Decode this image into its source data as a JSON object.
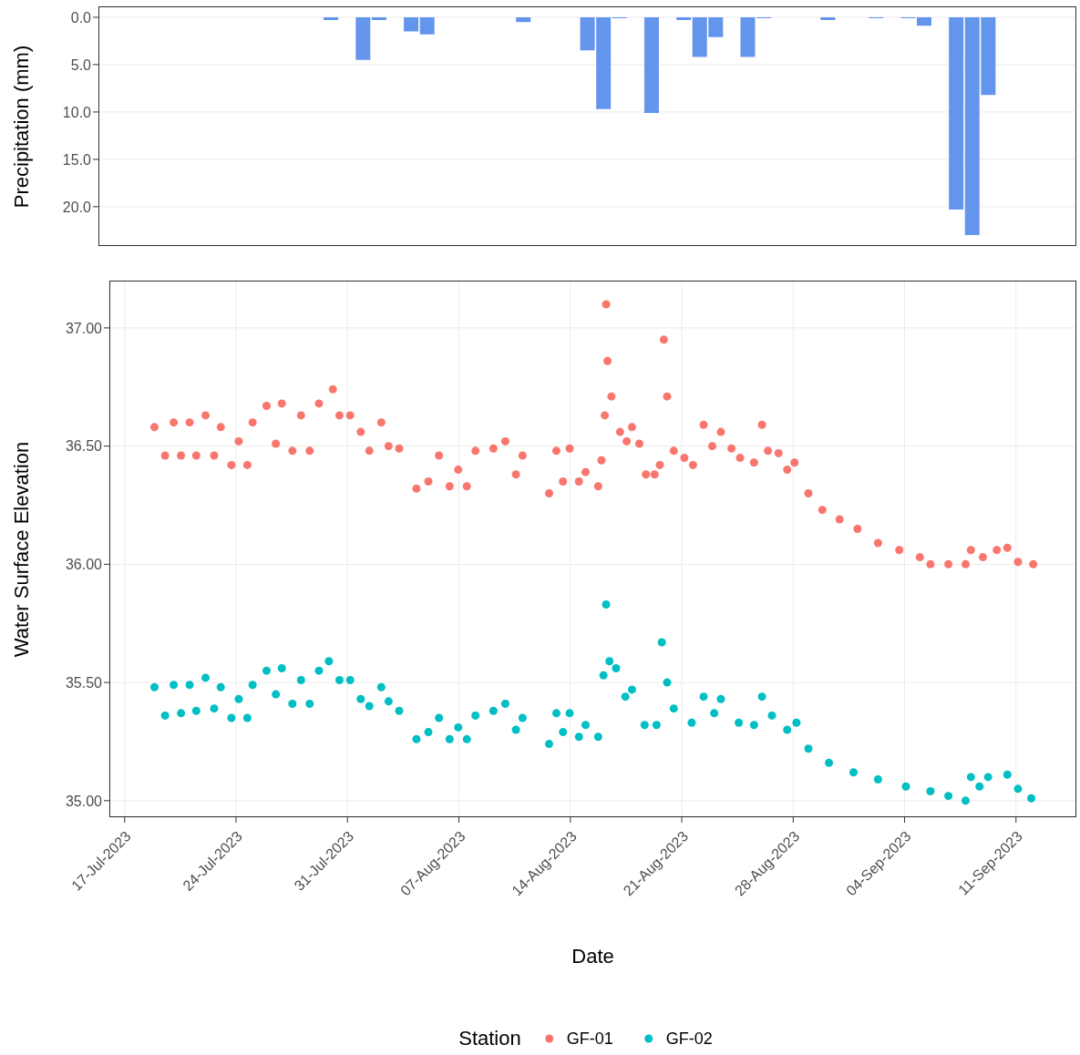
{
  "chart_data": [
    {
      "type": "bar",
      "ylabel": "Precipitation (mm)",
      "tick_labels": "y",
      "grid": "y",
      "categories": [
        null,
        null,
        null,
        null,
        null,
        null,
        null,
        null,
        null,
        null,
        null,
        null,
        null,
        null,
        null,
        null,
        null,
        null,
        null,
        null,
        null,
        null,
        null,
        null,
        null,
        null,
        null,
        null,
        null,
        null,
        null,
        null,
        null,
        null,
        null,
        null,
        null,
        null,
        null,
        null,
        null,
        null,
        null,
        null,
        null,
        null,
        null,
        null,
        null,
        null,
        null,
        null,
        null,
        null,
        null,
        null,
        null,
        null,
        null,
        null,
        null
      ],
      "values": [
        0,
        0,
        0,
        0,
        0,
        0,
        0,
        0,
        0,
        0,
        0,
        0,
        0,
        0,
        0.3,
        0,
        4.5,
        0.3,
        0,
        1.5,
        1.8,
        0,
        0,
        0,
        0,
        0,
        0.5,
        0,
        0,
        0,
        3.5,
        9.7,
        0.1,
        0,
        10.1,
        0,
        0.3,
        4.2,
        2.1,
        0,
        4.2,
        0.1,
        0,
        0,
        0,
        0.3,
        0,
        0,
        0.1,
        0,
        0.1,
        0.9,
        0,
        20.3,
        23.0,
        8.2,
        0,
        0,
        0,
        0,
        0
      ],
      "color": "#6495ed",
      "ylim": [
        24.15,
        -1.15
      ],
      "yticks": [
        {
          "value": 0,
          "label": "0.0"
        },
        {
          "value": 5,
          "label": "5.0"
        },
        {
          "value": 10,
          "label": "10.0"
        },
        {
          "value": 15,
          "label": "15.0"
        },
        {
          "value": 20,
          "label": "20.0"
        }
      ]
    },
    {
      "type": "scatter",
      "xlabel": "Date",
      "ylabel": "Water Surface Elevation",
      "legend_title": "Station",
      "legend": "bottom",
      "grid": true,
      "marker": "circle",
      "xlim": [
        "2023-07-16T01:00",
        "2023-09-14T19:00"
      ],
      "xticks": [
        {
          "value": "2023-07-17",
          "label": "17-Jul-2023"
        },
        {
          "value": "2023-07-24",
          "label": "24-Jul-2023"
        },
        {
          "value": "2023-07-31",
          "label": "31-Jul-2023"
        },
        {
          "value": "2023-08-07",
          "label": "07-Aug-2023"
        },
        {
          "value": "2023-08-14",
          "label": "14-Aug-2023"
        },
        {
          "value": "2023-08-21",
          "label": "21-Aug-2023"
        },
        {
          "value": "2023-08-28",
          "label": "28-Aug-2023"
        },
        {
          "value": "2023-09-04",
          "label": "04-Sep-2023"
        },
        {
          "value": "2023-09-11",
          "label": "11-Sep-2023"
        }
      ],
      "ylim": [
        34.93,
        37.2
      ],
      "yticks": [
        {
          "value": 35,
          "label": "35.00"
        },
        {
          "value": 35.5,
          "label": "35.50"
        },
        {
          "value": 36,
          "label": "36.00"
        },
        {
          "value": 36.5,
          "label": "36.50"
        },
        {
          "value": 37,
          "label": "37.00"
        }
      ],
      "series": [
        {
          "name": "GF-01",
          "color": "#f8766d",
          "x": [
            "2023-07-18T21:00",
            "2023-07-19T13:00",
            "2023-07-20T02:00",
            "2023-07-20T13:00",
            "2023-07-21T02:00",
            "2023-07-21T12:00",
            "2023-07-22T02:00",
            "2023-07-22T15:00",
            "2023-07-23T01:00",
            "2023-07-23T17:00",
            "2023-07-24T04:00",
            "2023-07-24T17:00",
            "2023-07-25T01:00",
            "2023-07-25T22:00",
            "2023-07-26T12:00",
            "2023-07-26T21:00",
            "2023-07-27T13:00",
            "2023-07-28T02:00",
            "2023-07-28T15:00",
            "2023-07-29T05:00",
            "2023-07-30T02:00",
            "2023-07-30T12:00",
            "2023-07-31T04:00",
            "2023-07-31T20:00",
            "2023-08-01T09:00",
            "2023-08-02T03:00",
            "2023-08-02T14:00",
            "2023-08-03T06:00",
            "2023-08-04T08:00",
            "2023-08-05T02:00",
            "2023-08-05T18:00",
            "2023-08-06T10:00",
            "2023-08-06T23:00",
            "2023-08-07T12:00",
            "2023-08-08T01:00",
            "2023-08-09T04:00",
            "2023-08-09T22:00",
            "2023-08-10T14:00",
            "2023-08-11T00:00",
            "2023-08-12T16:00",
            "2023-08-13T03:00",
            "2023-08-13T13:00",
            "2023-08-13T23:00",
            "2023-08-14T13:00",
            "2023-08-14T23:00",
            "2023-08-15T18:00",
            "2023-08-15T23:00",
            "2023-08-16T04:00",
            "2023-08-16T06:00",
            "2023-08-16T08:00",
            "2023-08-16T14:00",
            "2023-08-17T03:00",
            "2023-08-17T13:00",
            "2023-08-17T21:00",
            "2023-08-18T08:00",
            "2023-08-18T18:00",
            "2023-08-19T07:00",
            "2023-08-19T15:00",
            "2023-08-19T21:00",
            "2023-08-20T02:00",
            "2023-08-20T12:00",
            "2023-08-21T04:00",
            "2023-08-21T17:00",
            "2023-08-22T09:00",
            "2023-08-22T22:00",
            "2023-08-23T11:00",
            "2023-08-24T03:00",
            "2023-08-24T16:00",
            "2023-08-25T13:00",
            "2023-08-26T01:00",
            "2023-08-26T10:00",
            "2023-08-27T02:00",
            "2023-08-27T15:00",
            "2023-08-28T02:00",
            "2023-08-28T23:00",
            "2023-08-29T20:00",
            "2023-08-30T22:00",
            "2023-09-01T01:00",
            "2023-09-02T08:00",
            "2023-09-03T16:00",
            "2023-09-04T23:00",
            "2023-09-05T15:00",
            "2023-09-06T18:00",
            "2023-09-07T20:00",
            "2023-09-08T04:00",
            "2023-09-08T22:00",
            "2023-09-09T19:00",
            "2023-09-10T11:00",
            "2023-09-11T03:00",
            "2023-09-12T02:00"
          ],
          "values": [
            36.58,
            36.46,
            36.6,
            36.46,
            36.6,
            36.46,
            36.63,
            36.46,
            36.58,
            36.42,
            36.52,
            36.42,
            36.6,
            36.67,
            36.51,
            36.68,
            36.48,
            36.63,
            36.48,
            36.68,
            36.74,
            36.63,
            36.63,
            36.56,
            36.48,
            36.6,
            36.5,
            36.49,
            36.32,
            36.35,
            36.46,
            36.33,
            36.4,
            36.33,
            36.48,
            36.49,
            36.52,
            36.38,
            36.46,
            36.3,
            36.48,
            36.35,
            36.49,
            36.35,
            36.39,
            36.33,
            36.44,
            36.63,
            37.1,
            36.86,
            36.71,
            36.56,
            36.52,
            36.58,
            36.51,
            36.38,
            36.38,
            36.42,
            36.95,
            36.71,
            36.48,
            36.45,
            36.42,
            36.59,
            36.5,
            36.56,
            36.49,
            36.45,
            36.43,
            36.59,
            36.48,
            36.47,
            36.4,
            36.43,
            36.3,
            36.23,
            36.19,
            36.15,
            36.09,
            36.06,
            36.03,
            36.0,
            36.0,
            36.0,
            36.06,
            36.03,
            36.06,
            36.07,
            36.01,
            36.0
          ]
        },
        {
          "name": "GF-02",
          "color": "#00bfc4",
          "x": [
            "2023-07-18T21:00",
            "2023-07-19T13:00",
            "2023-07-20T02:00",
            "2023-07-20T13:00",
            "2023-07-21T02:00",
            "2023-07-21T12:00",
            "2023-07-22T02:00",
            "2023-07-22T15:00",
            "2023-07-23T01:00",
            "2023-07-23T17:00",
            "2023-07-24T04:00",
            "2023-07-24T17:00",
            "2023-07-25T01:00",
            "2023-07-25T22:00",
            "2023-07-26T12:00",
            "2023-07-26T21:00",
            "2023-07-27T13:00",
            "2023-07-28T02:00",
            "2023-07-28T15:00",
            "2023-07-29T05:00",
            "2023-07-29T20:00",
            "2023-07-30T12:00",
            "2023-07-31T04:00",
            "2023-07-31T20:00",
            "2023-08-01T09:00",
            "2023-08-02T03:00",
            "2023-08-02T14:00",
            "2023-08-03T06:00",
            "2023-08-04T08:00",
            "2023-08-05T02:00",
            "2023-08-05T18:00",
            "2023-08-06T10:00",
            "2023-08-06T23:00",
            "2023-08-07T12:00",
            "2023-08-08T01:00",
            "2023-08-09T04:00",
            "2023-08-09T22:00",
            "2023-08-10T14:00",
            "2023-08-11T00:00",
            "2023-08-12T16:00",
            "2023-08-13T03:00",
            "2023-08-13T13:00",
            "2023-08-13T23:00",
            "2023-08-14T13:00",
            "2023-08-14T23:00",
            "2023-08-15T18:00",
            "2023-08-16T02:00",
            "2023-08-16T06:00",
            "2023-08-16T11:00",
            "2023-08-16T21:00",
            "2023-08-17T11:00",
            "2023-08-17T21:00",
            "2023-08-18T16:00",
            "2023-08-19T10:00",
            "2023-08-19T18:00",
            "2023-08-20T02:00",
            "2023-08-20T12:00",
            "2023-08-21T15:00",
            "2023-08-22T09:00",
            "2023-08-23T01:00",
            "2023-08-23T11:00",
            "2023-08-24T14:00",
            "2023-08-25T13:00",
            "2023-08-26T01:00",
            "2023-08-26T16:00",
            "2023-08-27T15:00",
            "2023-08-28T05:00",
            "2023-08-28T23:00",
            "2023-08-30T06:00",
            "2023-08-31T19:00",
            "2023-09-02T08:00",
            "2023-09-04T02:00",
            "2023-09-05T15:00",
            "2023-09-06T18:00",
            "2023-09-07T20:00",
            "2023-09-08T04:00",
            "2023-09-08T17:00",
            "2023-09-09T06:00",
            "2023-09-10T11:00",
            "2023-09-11T03:00",
            "2023-09-11T23:00"
          ],
          "values": [
            35.48,
            35.36,
            35.49,
            35.37,
            35.49,
            35.38,
            35.52,
            35.39,
            35.48,
            35.35,
            35.43,
            35.35,
            35.49,
            35.55,
            35.45,
            35.56,
            35.41,
            35.51,
            35.41,
            35.55,
            35.59,
            35.51,
            35.51,
            35.43,
            35.4,
            35.48,
            35.42,
            35.38,
            35.26,
            35.29,
            35.35,
            35.26,
            35.31,
            35.26,
            35.36,
            35.38,
            35.41,
            35.3,
            35.35,
            35.24,
            35.37,
            35.29,
            35.37,
            35.27,
            35.32,
            35.27,
            35.53,
            35.83,
            35.59,
            35.56,
            35.44,
            35.47,
            35.32,
            35.32,
            35.67,
            35.5,
            35.39,
            35.33,
            35.44,
            35.37,
            35.43,
            35.33,
            35.32,
            35.44,
            35.36,
            35.3,
            35.33,
            35.22,
            35.16,
            35.12,
            35.09,
            35.06,
            35.04,
            35.02,
            35.0,
            35.1,
            35.06,
            35.1,
            35.11,
            35.05,
            35.01
          ]
        }
      ]
    }
  ]
}
